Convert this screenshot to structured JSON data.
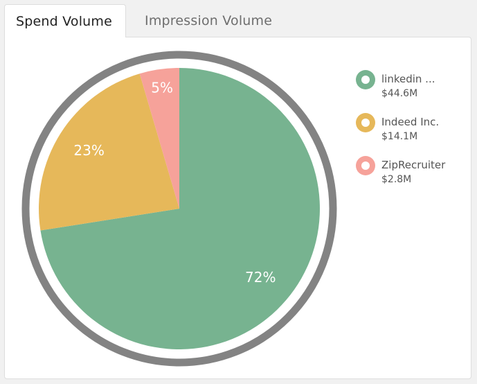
{
  "tabs": [
    {
      "label": "Spend Volume",
      "active": true
    },
    {
      "label": "Impression Volume",
      "active": false
    }
  ],
  "colors": {
    "ring": "#838383",
    "linkedin": "#77b390",
    "indeed": "#e6b85a",
    "ziprecruiter": "#f6a29a",
    "label_text": "#ffffff"
  },
  "chart_data": {
    "type": "pie",
    "title": "",
    "slices": [
      {
        "name": "linkedin ...",
        "value_label": "$44.6M",
        "value": 44.6,
        "percent": 72,
        "percent_label": "72%",
        "color": "#77b390"
      },
      {
        "name": "Indeed Inc.",
        "value_label": "$14.1M",
        "value": 14.1,
        "percent": 23,
        "percent_label": "23%",
        "color": "#e6b85a"
      },
      {
        "name": "ZipRecruiter",
        "value_label": "$2.8M",
        "value": 2.8,
        "percent": 5,
        "percent_label": "5%",
        "color": "#f6a29a"
      }
    ],
    "legend_position": "right"
  }
}
